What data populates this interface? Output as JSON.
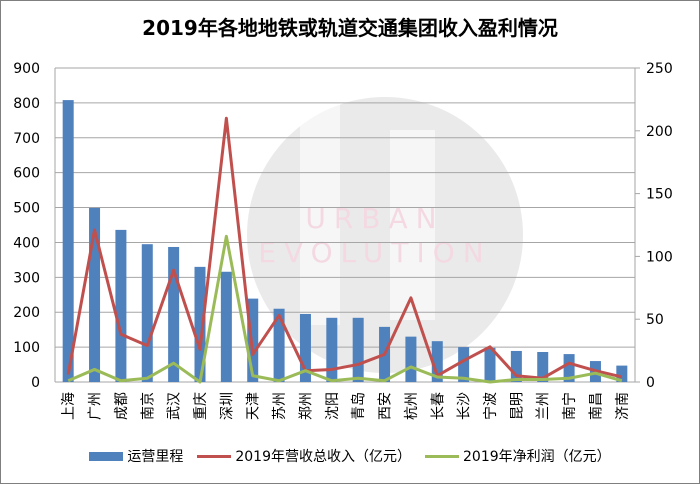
{
  "title": "2019年各地地铁或轨道交通集团收入盈利情况",
  "colors": {
    "bar": "#4f81bd",
    "revenue_line": "#c0504d",
    "profit_line": "#9bbb59",
    "grid": "#a6a6a6",
    "watermark_circle": "#d9d9d9",
    "watermark_text": "#f4d9e2"
  },
  "watermark": {
    "logo": "UE",
    "line1": "URBAN",
    "line2": "EVOLUTION"
  },
  "legend": [
    {
      "label": "运营里程",
      "type": "bar",
      "color": "#4f81bd"
    },
    {
      "label": "2019年营收总收入（亿元）",
      "type": "line",
      "color": "#c0504d"
    },
    {
      "label": "2019年净利润（亿元）",
      "type": "line",
      "color": "#9bbb59"
    }
  ],
  "chart_data": {
    "type": "bar+line",
    "title": "2019年各地地铁或轨道交通集团收入盈利情况",
    "categories": [
      "上海",
      "广州",
      "成都",
      "南京",
      "武汉",
      "重庆",
      "深圳",
      "天津",
      "苏州",
      "郑州",
      "沈阳",
      "青岛",
      "西安",
      "杭州",
      "长春",
      "长沙",
      "宁波",
      "昆明",
      "兰州",
      "南宁",
      "南昌",
      "济南"
    ],
    "series": [
      {
        "name": "运营里程",
        "type": "bar",
        "axis": "left",
        "values": [
          808,
          499,
          436,
          395,
          387,
          330,
          316,
          239,
          210,
          195,
          184,
          184,
          158,
          130,
          117,
          100,
          98,
          89,
          86,
          80,
          60,
          47
        ]
      },
      {
        "name": "2019年营收总收入（亿元）",
        "type": "line",
        "axis": "right",
        "values": [
          6,
          121,
          38,
          29,
          89,
          26,
          210,
          22,
          53,
          9,
          10,
          14,
          22,
          67,
          5,
          17,
          28,
          5,
          3,
          15,
          9,
          4
        ]
      },
      {
        "name": "2019年净利润（亿元）",
        "type": "line",
        "axis": "right",
        "values": [
          1,
          10,
          1,
          3,
          15,
          0,
          116,
          5,
          1,
          9,
          1,
          3,
          1,
          12,
          4,
          3,
          0,
          2,
          2,
          3,
          7,
          1
        ]
      }
    ],
    "left_axis": {
      "min": 0,
      "max": 900,
      "step": 100,
      "ticks": [
        "0",
        "100",
        "200",
        "300",
        "400",
        "500",
        "600",
        "700",
        "800",
        "900"
      ]
    },
    "right_axis": {
      "min": 0,
      "max": 250,
      "step": 50,
      "ticks": [
        "0",
        "50",
        "100",
        "150",
        "200",
        "250"
      ]
    },
    "xlabel": "",
    "ylabel": "",
    "grid": true,
    "legend_position": "bottom"
  }
}
